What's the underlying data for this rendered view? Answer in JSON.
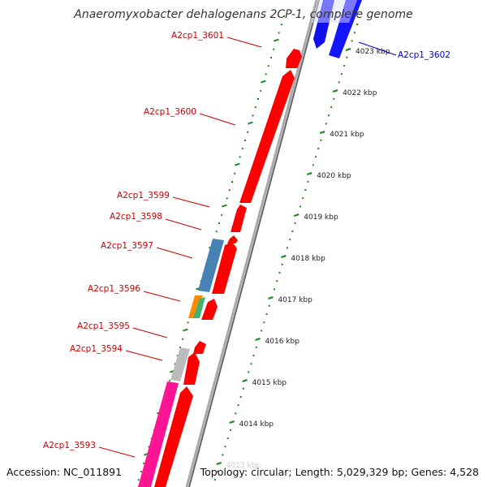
{
  "title": "Anaeromyxobacter dehalogenans 2CP-1, complete genome",
  "accession": "Accession: NC_011891",
  "topology": "Topology: circular; Length: 5,029,329 bp; Genes: 4,528",
  "colors": {
    "backbone": "#999999",
    "ticks": "#1a8a1a",
    "forward_gene": "#ff0000",
    "reverse_gene": "#0000ff",
    "label_forward": "#cc0000",
    "label_reverse": "#0000cc"
  },
  "scale_labels": [
    "4023 kbp",
    "4022 kbp",
    "4021 kbp",
    "4020 kbp",
    "4019 kbp",
    "4018 kbp",
    "4017 kbp",
    "4016 kbp",
    "4015 kbp",
    "4014 kbp",
    "4013 kbp"
  ],
  "gene_labels": [
    {
      "text": "A2cp1_3601",
      "strand": "forward"
    },
    {
      "text": "A2cp1_3600",
      "strand": "forward"
    },
    {
      "text": "A2cp1_3599",
      "strand": "forward"
    },
    {
      "text": "A2cp1_3598",
      "strand": "forward"
    },
    {
      "text": "A2cp1_3597",
      "strand": "forward"
    },
    {
      "text": "A2cp1_3596",
      "strand": "forward"
    },
    {
      "text": "A2cp1_3595",
      "strand": "forward"
    },
    {
      "text": "A2cp1_3594",
      "strand": "forward"
    },
    {
      "text": "A2cp1_3593",
      "strand": "forward"
    },
    {
      "text": "A2cp1_3602",
      "strand": "reverse"
    }
  ]
}
